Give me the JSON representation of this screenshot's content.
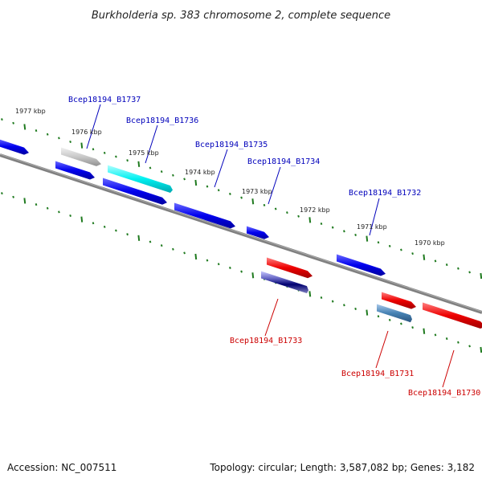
{
  "title": "Burkholderia sp. 383 chromosome 2, complete sequence",
  "footer": {
    "accession": "Accession: NC_007511",
    "summary": "Topology: circular; Length: 3,587,082 bp; Genes: 3,182"
  },
  "colors": {
    "backbone": "#808080",
    "tick": "#1f7a1f",
    "label_forward": "#0000bb",
    "label_reverse": "#cc0000"
  },
  "kbp_ticks": [
    {
      "label": "1977 kbp"
    },
    {
      "label": "1976 kbp"
    },
    {
      "label": "1975 kbp"
    },
    {
      "label": "1974 kbp"
    },
    {
      "label": "1973 kbp"
    },
    {
      "label": "1972 kbp"
    },
    {
      "label": "1971 kbp"
    },
    {
      "label": "1970 kbp"
    }
  ],
  "genes": [
    {
      "id": "Bcep18194_B1737",
      "strand": "forward",
      "color": "#0000ee"
    },
    {
      "id": "Bcep18194_B1736",
      "strand": "forward",
      "color": "#00e5e5"
    },
    {
      "id": "Bcep18194_B1735",
      "strand": "forward",
      "color": "#0000ee"
    },
    {
      "id": "Bcep18194_B1734",
      "strand": "forward",
      "color": "#0000ee"
    },
    {
      "id": "Bcep18194_B1732",
      "strand": "forward",
      "color": "#0000ee"
    },
    {
      "id": "Bcep18194_B1733",
      "strand": "reverse",
      "color": "#ee0000"
    },
    {
      "id": "Bcep18194_B1731",
      "strand": "reverse",
      "color": "#ee0000"
    },
    {
      "id": "Bcep18194_B1730",
      "strand": "reverse",
      "color": "#ee0000"
    }
  ]
}
